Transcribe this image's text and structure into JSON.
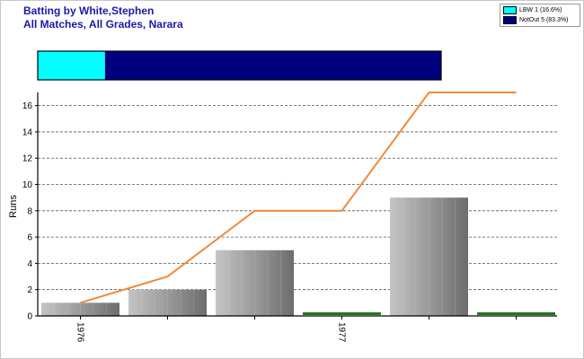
{
  "header": {
    "title_line1": "Batting by White,Stephen",
    "title_line2": "All Matches, All Grades, Narara"
  },
  "legend": [
    {
      "label": "LBW 1 (16.6%)",
      "color": "#00ffff"
    },
    {
      "label": "NotOut 5 (83.3%)",
      "color": "#00007f"
    }
  ],
  "colors": {
    "bar": "#9a9a9a",
    "zero_bar": "#1a7a1a",
    "cumulative_line": "#f08a3c",
    "title": "#1a1aa6"
  },
  "chart_data": [
    {
      "type": "stacked-bar",
      "orientation": "horizontal",
      "segments": [
        {
          "name": "LBW",
          "count": 1,
          "percent": 16.6,
          "color": "#00ffff"
        },
        {
          "name": "NotOut",
          "count": 5,
          "percent": 83.3,
          "color": "#00007f"
        }
      ]
    },
    {
      "type": "bar",
      "ylabel": "Runs",
      "ylim": [
        0,
        17
      ],
      "yticks": [
        0,
        2,
        4,
        6,
        8,
        10,
        12,
        14,
        16
      ],
      "grid": true,
      "innings_runs": [
        1,
        2,
        5,
        0,
        9,
        0
      ],
      "cumulative_runs": [
        1,
        3,
        8,
        8,
        17,
        17
      ],
      "year_labels": [
        {
          "label": "1976",
          "innings_index": 0
        },
        {
          "label": "1977",
          "innings_index": 3
        }
      ]
    }
  ]
}
